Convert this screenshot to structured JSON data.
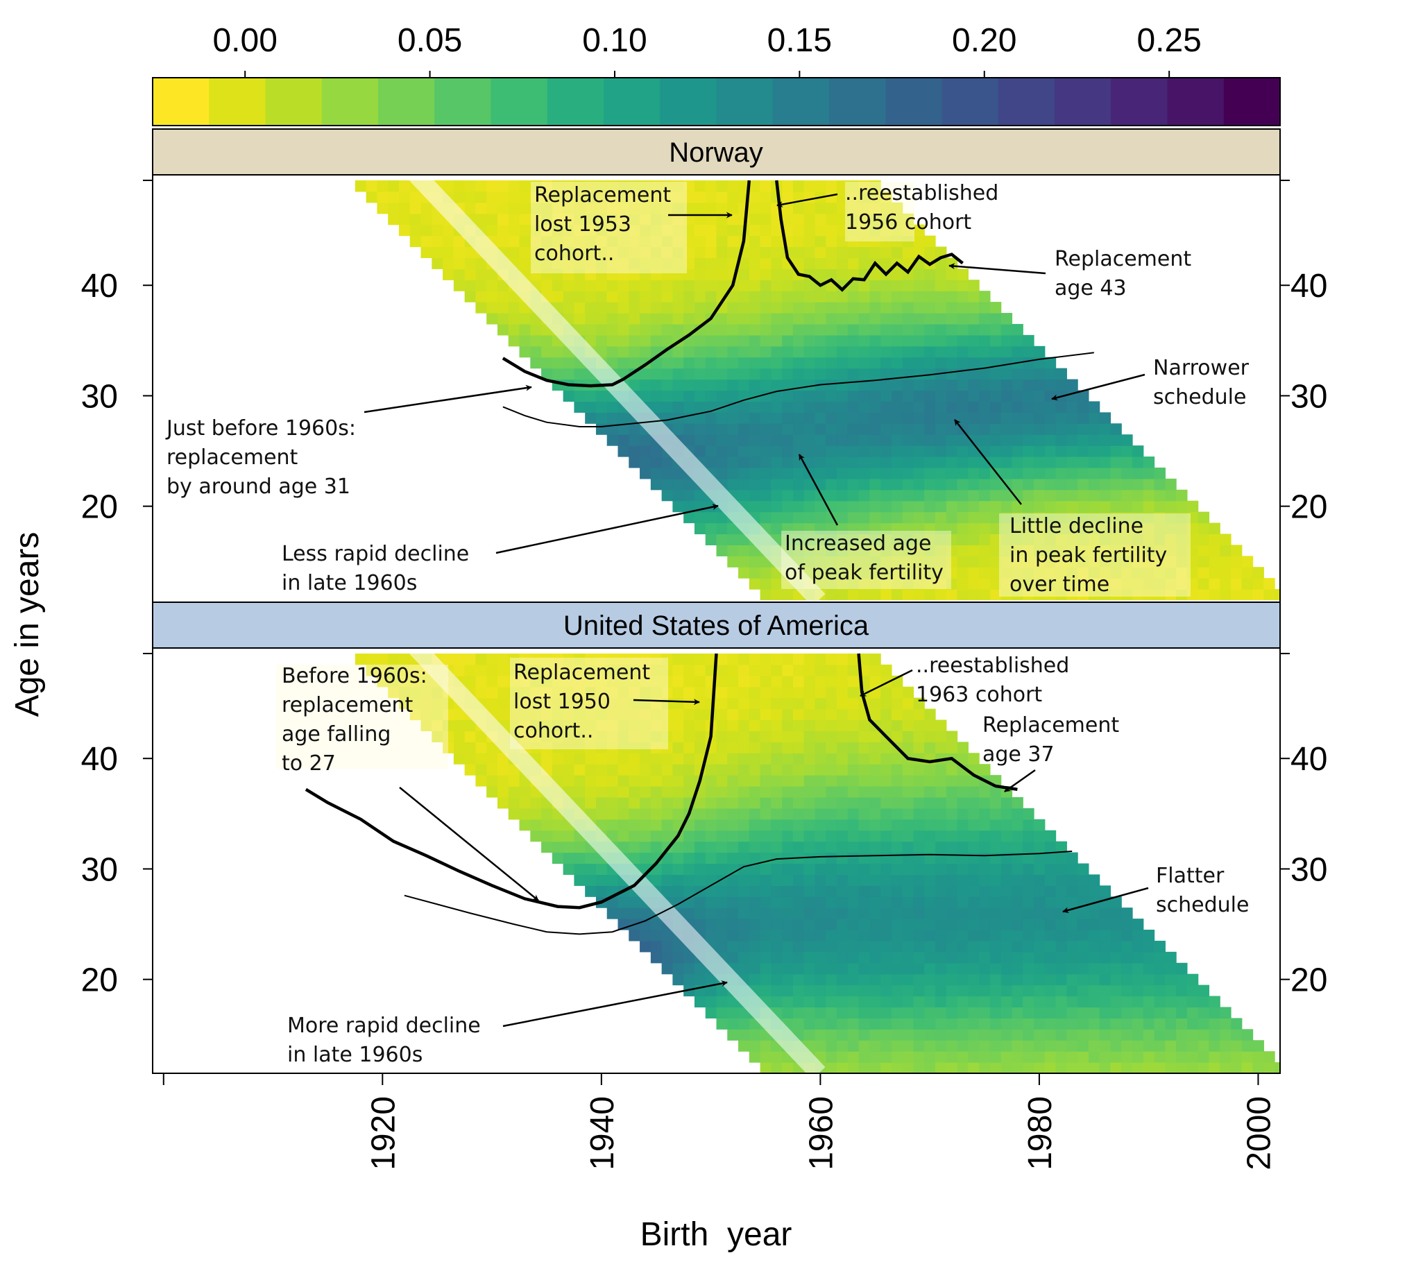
{
  "chart_data": {
    "type": "heatmap",
    "xlabel": "Birth  year",
    "ylabel": "Age in years",
    "x_ticks": [
      1920,
      1940,
      1960,
      1980,
      2000
    ],
    "y_ticks": [
      20,
      30,
      40
    ],
    "xlim": [
      1899,
      2002
    ],
    "ylim": [
      11.5,
      50
    ],
    "color_scale": {
      "range": [
        -0.025,
        0.28
      ],
      "ticks": [
        "0.00",
        "0.05",
        "0.10",
        "0.15",
        "0.20",
        "0.25"
      ],
      "tick_values": [
        0.0,
        0.05,
        0.1,
        0.15,
        0.2,
        0.25
      ],
      "colors": [
        "#fde725",
        "#dde318",
        "#bade28",
        "#95d840",
        "#75d054",
        "#56c667",
        "#3dbc74",
        "#29af7f",
        "#20a386",
        "#1f968b",
        "#238a8d",
        "#287d8e",
        "#2d718e",
        "#33638d",
        "#39558c",
        "#404688",
        "#453781",
        "#482576",
        "#481467",
        "#440154"
      ]
    },
    "panels": [
      {
        "name": "Norway",
        "strip_color": "#e2d9bf",
        "birth_year_min": 1900,
        "birth_year_max": 2002,
        "observed_until": 2014,
        "age_min": 12,
        "age_max": 49,
        "peak_mean": [
          [
            1900,
            26.5
          ],
          [
            1920,
            25.5
          ],
          [
            1930,
            24.5
          ],
          [
            1935,
            23.5
          ],
          [
            1940,
            23.5
          ],
          [
            1945,
            24.5
          ],
          [
            1950,
            25
          ],
          [
            1955,
            26
          ],
          [
            1960,
            27
          ],
          [
            1965,
            28
          ],
          [
            1970,
            28.5
          ],
          [
            1975,
            29
          ],
          [
            1980,
            29.5
          ],
          [
            1990,
            30
          ],
          [
            2002,
            30
          ]
        ],
        "peak_height": [
          [
            1900,
            0.17
          ],
          [
            1920,
            0.17
          ],
          [
            1930,
            0.185
          ],
          [
            1935,
            0.195
          ],
          [
            1940,
            0.19
          ],
          [
            1945,
            0.175
          ],
          [
            1950,
            0.165
          ],
          [
            1955,
            0.155
          ],
          [
            1960,
            0.155
          ],
          [
            1965,
            0.16
          ],
          [
            1970,
            0.165
          ],
          [
            1975,
            0.165
          ],
          [
            1980,
            0.165
          ],
          [
            1990,
            0.16
          ],
          [
            2002,
            0.16
          ]
        ],
        "spread": [
          [
            1900,
            6.5
          ],
          [
            1930,
            6
          ],
          [
            1940,
            6
          ],
          [
            1950,
            6.5
          ],
          [
            1960,
            6.5
          ],
          [
            1970,
            6
          ],
          [
            1980,
            5.5
          ],
          [
            2002,
            5.5
          ]
        ],
        "replacement_age_line": [
          [
            1931,
            33.4
          ],
          [
            1933,
            32.2
          ],
          [
            1935,
            31.4
          ],
          [
            1937,
            31.0
          ],
          [
            1939,
            30.9
          ],
          [
            1941,
            31.0
          ],
          [
            1942,
            31.5
          ],
          [
            1944,
            32.8
          ],
          [
            1946,
            34.2
          ],
          [
            1948,
            35.5
          ],
          [
            1950,
            37.0
          ],
          [
            1952,
            40.0
          ],
          [
            1953,
            44.0
          ],
          [
            1953.5,
            49.5
          ]
        ],
        "replacement_age_line_2": [
          [
            1956,
            49.5
          ],
          [
            1956.4,
            46.0
          ],
          [
            1957,
            42.5
          ],
          [
            1958,
            41.0
          ],
          [
            1959,
            40.8
          ],
          [
            1960,
            40.0
          ],
          [
            1961,
            40.5
          ],
          [
            1962,
            39.6
          ],
          [
            1963,
            40.6
          ],
          [
            1964,
            40.5
          ],
          [
            1965,
            42.0
          ],
          [
            1966,
            41.0
          ],
          [
            1967,
            42.0
          ],
          [
            1968,
            41.2
          ],
          [
            1969,
            42.6
          ],
          [
            1970,
            41.9
          ],
          [
            1971,
            42.5
          ],
          [
            1972,
            42.8
          ],
          [
            1973,
            42.0
          ]
        ],
        "mean_age_line": [
          [
            1931,
            29.0
          ],
          [
            1933,
            28.2
          ],
          [
            1935,
            27.6
          ],
          [
            1938,
            27.2
          ],
          [
            1940,
            27.2
          ],
          [
            1943,
            27.5
          ],
          [
            1946,
            27.8
          ],
          [
            1950,
            28.6
          ],
          [
            1953,
            29.6
          ],
          [
            1956,
            30.4
          ],
          [
            1960,
            31.0
          ],
          [
            1965,
            31.4
          ],
          [
            1970,
            31.9
          ],
          [
            1975,
            32.5
          ],
          [
            1980,
            33.3
          ],
          [
            1985,
            33.9
          ]
        ],
        "annotations": [
          {
            "text": [
              "Replacement",
              "lost 1953",
              "cohort.."
            ]
          },
          {
            "text": [
              "..reestablished",
              "1956 cohort"
            ]
          },
          {
            "text": [
              "Replacement",
              "age 43"
            ]
          },
          {
            "text": [
              "Narrower",
              "schedule"
            ]
          },
          {
            "text": [
              "Just before 1960s:",
              "replacement",
              "by around age 31"
            ]
          },
          {
            "text": [
              "Less rapid decline",
              "in late 1960s"
            ]
          },
          {
            "text": [
              "Increased age",
              "of peak fertility"
            ]
          },
          {
            "text": [
              "Little decline",
              "in peak fertility",
              "over time"
            ]
          }
        ]
      },
      {
        "name": "United States of America",
        "strip_color": "#b7cce3",
        "birth_year_min": 1900,
        "birth_year_max": 2002,
        "observed_until": 2014,
        "age_min": 12,
        "age_max": 49,
        "peak_mean": [
          [
            1900,
            25
          ],
          [
            1915,
            24
          ],
          [
            1925,
            22.5
          ],
          [
            1935,
            21
          ],
          [
            1940,
            21.5
          ],
          [
            1945,
            22.5
          ],
          [
            1950,
            24
          ],
          [
            1955,
            25
          ],
          [
            1960,
            25.5
          ],
          [
            1970,
            25.5
          ],
          [
            1980,
            26
          ],
          [
            2002,
            26
          ]
        ],
        "peak_height": [
          [
            1900,
            0.14
          ],
          [
            1915,
            0.155
          ],
          [
            1925,
            0.19
          ],
          [
            1935,
            0.25
          ],
          [
            1940,
            0.22
          ],
          [
            1945,
            0.185
          ],
          [
            1950,
            0.16
          ],
          [
            1955,
            0.145
          ],
          [
            1960,
            0.145
          ],
          [
            1970,
            0.14
          ],
          [
            1980,
            0.14
          ],
          [
            2002,
            0.135
          ]
        ],
        "spread": [
          [
            1900,
            7
          ],
          [
            1930,
            6
          ],
          [
            1940,
            6.5
          ],
          [
            1950,
            7
          ],
          [
            1960,
            8
          ],
          [
            1970,
            8.5
          ],
          [
            1980,
            8.5
          ],
          [
            2002,
            8.5
          ]
        ],
        "replacement_age_line": [
          [
            1913,
            37.2
          ],
          [
            1915,
            36.0
          ],
          [
            1918,
            34.5
          ],
          [
            1921,
            32.5
          ],
          [
            1924,
            31.2
          ],
          [
            1927,
            29.8
          ],
          [
            1930,
            28.5
          ],
          [
            1933,
            27.3
          ],
          [
            1936,
            26.6
          ],
          [
            1938,
            26.5
          ],
          [
            1940,
            27.0
          ],
          [
            1943,
            28.5
          ],
          [
            1945,
            30.5
          ],
          [
            1947,
            33.0
          ],
          [
            1948,
            35.0
          ],
          [
            1949,
            38.0
          ],
          [
            1950,
            42.0
          ],
          [
            1950.5,
            49.5
          ]
        ],
        "replacement_age_line_2": [
          [
            1963.5,
            49.5
          ],
          [
            1963.8,
            46.0
          ],
          [
            1964.5,
            43.5
          ],
          [
            1966,
            42.0
          ],
          [
            1968,
            40.0
          ],
          [
            1970,
            39.7
          ],
          [
            1972,
            40.0
          ],
          [
            1974,
            38.5
          ],
          [
            1976,
            37.5
          ],
          [
            1978,
            37.2
          ]
        ],
        "mean_age_line": [
          [
            1922,
            27.6
          ],
          [
            1925,
            26.8
          ],
          [
            1928,
            26.0
          ],
          [
            1932,
            25.0
          ],
          [
            1935,
            24.3
          ],
          [
            1938,
            24.1
          ],
          [
            1941,
            24.3
          ],
          [
            1944,
            25.3
          ],
          [
            1947,
            26.8
          ],
          [
            1950,
            28.5
          ],
          [
            1953,
            30.2
          ],
          [
            1956,
            30.9
          ],
          [
            1960,
            31.1
          ],
          [
            1965,
            31.2
          ],
          [
            1970,
            31.3
          ],
          [
            1975,
            31.2
          ],
          [
            1980,
            31.4
          ],
          [
            1983,
            31.6
          ]
        ],
        "annotations": [
          {
            "text": [
              "Before 1960s:",
              "replacement",
              "age falling",
              "to 27"
            ]
          },
          {
            "text": [
              "Replacement",
              "lost 1950",
              "cohort.."
            ]
          },
          {
            "text": [
              "..reestablished",
              "1963 cohort"
            ]
          },
          {
            "text": [
              "Replacement",
              "age 37"
            ]
          },
          {
            "text": [
              "Flatter",
              "schedule"
            ]
          },
          {
            "text": [
              "More rapid decline",
              "in late 1960s"
            ]
          }
        ]
      }
    ]
  }
}
